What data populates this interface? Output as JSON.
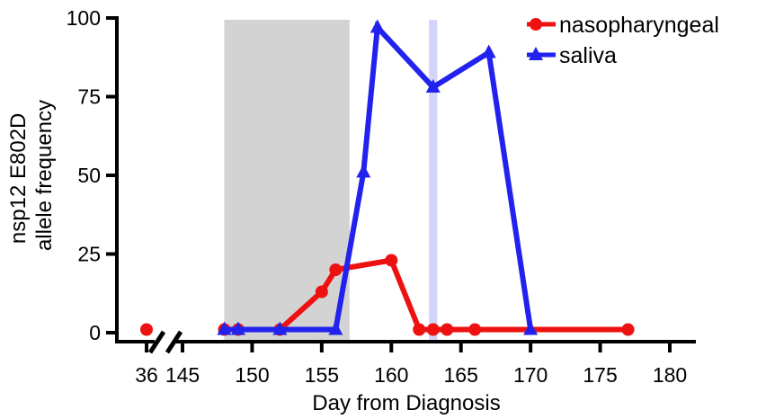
{
  "chart_data": {
    "type": "line",
    "title": "",
    "xlabel": "Day from Diagnosis",
    "ylabel_lines": [
      "nsp12 E802D",
      "allele frequency"
    ],
    "ylim": [
      0,
      100
    ],
    "y_ticks": [
      0,
      25,
      50,
      75,
      100
    ],
    "x_break": {
      "before": 36,
      "after_start": 145
    },
    "xlim": [
      145,
      180
    ],
    "x_ticks": [
      36,
      145,
      150,
      155,
      160,
      165,
      170,
      175,
      180
    ],
    "shaded_regions": [
      {
        "x_from": 148,
        "x_to": 157,
        "color": "#d3d3d3"
      },
      {
        "x_from": 162.7,
        "x_to": 163.3,
        "color": "#d4d4fb"
      }
    ],
    "legend_position": "top-right",
    "series": [
      {
        "name": "nasopharyngeal",
        "color": "#ee1111",
        "marker": "circle",
        "x": [
          36,
          148,
          149,
          152,
          155,
          156,
          160,
          162,
          163,
          164,
          166,
          177
        ],
        "y": [
          1,
          1,
          1,
          1,
          13,
          20,
          23,
          1,
          1,
          1,
          1,
          1
        ]
      },
      {
        "name": "saliva",
        "color": "#2222ee",
        "marker": "triangle",
        "x": [
          148,
          149,
          152,
          156,
          158,
          159,
          163,
          167,
          170
        ],
        "y": [
          1,
          1,
          1,
          1,
          51,
          97,
          78,
          89,
          1
        ]
      }
    ]
  }
}
